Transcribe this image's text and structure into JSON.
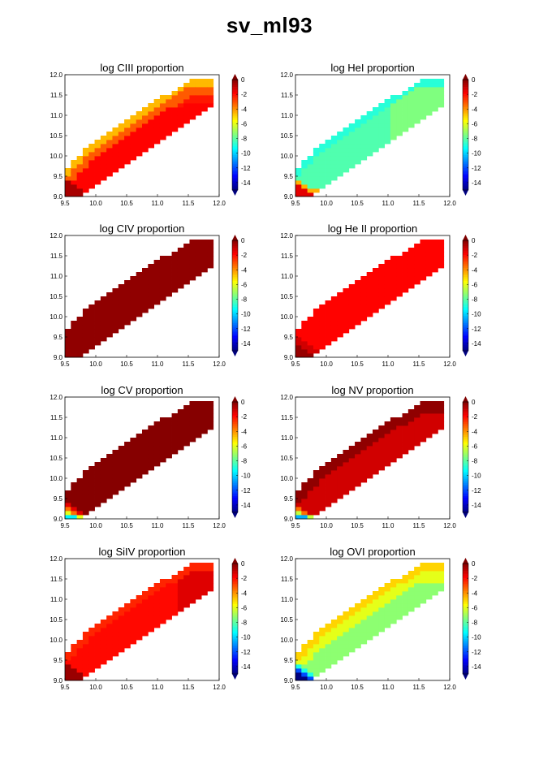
{
  "figure": {
    "title": "sv_ml93"
  },
  "colorbar": {
    "range": [
      -15,
      0
    ],
    "ticks": [
      "0",
      "-2",
      "-4",
      "-6",
      "-8",
      "-10",
      "-12",
      "-14"
    ],
    "colormap": [
      "#00007f",
      "#0000ff",
      "#007fff",
      "#00ffff",
      "#7fff7f",
      "#ffff00",
      "#ff7f00",
      "#ff0000",
      "#7f0000"
    ]
  },
  "chart_data": [
    {
      "type": "heatmap",
      "title": "log CIII proportion",
      "xlim": [
        9.5,
        12.0
      ],
      "ylim": [
        9.0,
        12.0
      ],
      "xticks": [
        "9.5",
        "10.0",
        "10.5",
        "11.0",
        "11.5",
        "12.0"
      ],
      "yticks": [
        "9.0",
        "9.5",
        "10.0",
        "10.5",
        "11.0",
        "11.5",
        "12.0"
      ],
      "model": "ciii",
      "description_values": {
        "upper_left_edge": -4.5,
        "interior": -2.0,
        "lower_left": -1.0
      }
    },
    {
      "type": "heatmap",
      "title": "log HeI proportion",
      "xlim": [
        9.5,
        12.0
      ],
      "ylim": [
        9.0,
        12.0
      ],
      "xticks": [
        "9.5",
        "10.0",
        "10.5",
        "11.0",
        "11.5",
        "12.0"
      ],
      "yticks": [
        "9.0",
        "9.5",
        "10.0",
        "10.5",
        "11.0",
        "11.5",
        "12.0"
      ],
      "model": "hei",
      "description_values": {
        "upper_left_edge": -9.0,
        "interior": -8.0,
        "lower_left": -2.0
      }
    },
    {
      "type": "heatmap",
      "title": "log CIV proportion",
      "xlim": [
        9.5,
        12.0
      ],
      "ylim": [
        9.0,
        12.0
      ],
      "xticks": [
        "9.5",
        "10.0",
        "10.5",
        "11.0",
        "11.5",
        "12.0"
      ],
      "yticks": [
        "9.0",
        "9.5",
        "10.0",
        "10.5",
        "11.0",
        "11.5",
        "12.0"
      ],
      "model": "civ",
      "description_values": {
        "upper_left_edge": -0.3,
        "interior": -0.3,
        "lower_left": -1.2
      }
    },
    {
      "type": "heatmap",
      "title": "log He II proportion",
      "xlim": [
        9.5,
        12.0
      ],
      "ylim": [
        9.0,
        12.0
      ],
      "xticks": [
        "9.5",
        "10.0",
        "10.5",
        "11.0",
        "11.5",
        "12.0"
      ],
      "yticks": [
        "9.0",
        "9.5",
        "10.0",
        "10.5",
        "11.0",
        "11.5",
        "12.0"
      ],
      "model": "heii",
      "description_values": {
        "upper_left_edge": -1.8,
        "interior": -1.8,
        "lower_left": -0.3
      }
    },
    {
      "type": "heatmap",
      "title": "log CV proportion",
      "xlim": [
        9.5,
        12.0
      ],
      "ylim": [
        9.0,
        12.0
      ],
      "xticks": [
        "9.5",
        "10.0",
        "10.5",
        "11.0",
        "11.5",
        "12.0"
      ],
      "yticks": [
        "9.0",
        "9.5",
        "10.0",
        "10.5",
        "11.0",
        "11.5",
        "12.0"
      ],
      "model": "cv",
      "description_values": {
        "upper_left_edge": -0.1,
        "interior": -0.1,
        "lower_left": -9.0
      }
    },
    {
      "type": "heatmap",
      "title": "log NV proportion",
      "xlim": [
        9.5,
        12.0
      ],
      "ylim": [
        9.0,
        12.0
      ],
      "xticks": [
        "9.5",
        "10.0",
        "10.5",
        "11.0",
        "11.5",
        "12.0"
      ],
      "yticks": [
        "9.0",
        "9.5",
        "10.0",
        "10.5",
        "11.0",
        "11.5",
        "12.0"
      ],
      "model": "nv",
      "description_values": {
        "upper_left_edge": -0.3,
        "interior": -1.2,
        "lower_left": -10.0
      }
    },
    {
      "type": "heatmap",
      "title": "log SiIV proportion",
      "xlim": [
        9.5,
        12.0
      ],
      "ylim": [
        9.0,
        12.0
      ],
      "xticks": [
        "9.5",
        "10.0",
        "10.5",
        "11.0",
        "11.5",
        "12.0"
      ],
      "yticks": [
        "9.0",
        "9.5",
        "10.0",
        "10.5",
        "11.0",
        "11.5",
        "12.0"
      ],
      "model": "siiv",
      "description_values": {
        "upper_left_edge": -2.3,
        "interior": -2.0,
        "lower_left": -0.4
      }
    },
    {
      "type": "heatmap",
      "title": "log OVI proportion",
      "xlim": [
        9.5,
        12.0
      ],
      "ylim": [
        9.0,
        12.0
      ],
      "xticks": [
        "9.5",
        "10.0",
        "10.5",
        "11.0",
        "11.5",
        "12.0"
      ],
      "yticks": [
        "9.0",
        "9.5",
        "10.0",
        "10.5",
        "11.0",
        "11.5",
        "12.0"
      ],
      "model": "ovi",
      "description_values": {
        "upper_left_edge": -5.0,
        "interior": -7.0,
        "lower_left": -15.0
      }
    }
  ]
}
